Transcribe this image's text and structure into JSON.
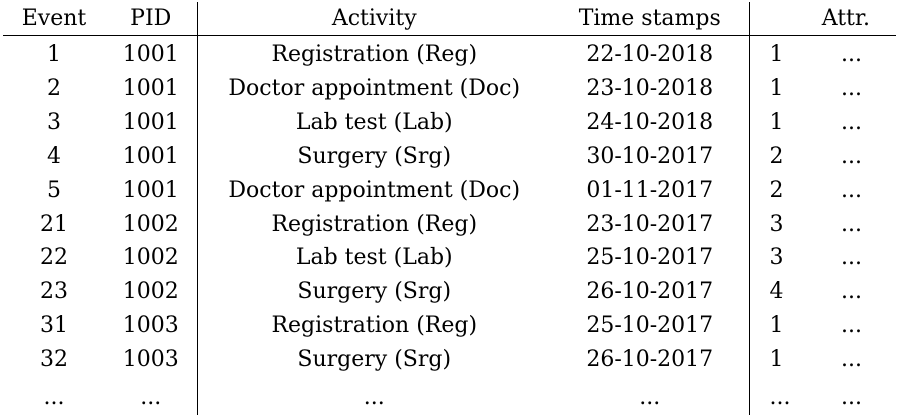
{
  "table": {
    "headers": {
      "event": "Event",
      "pid": "PID",
      "activity": "Activity",
      "timestamps": "Time stamps",
      "attr": "Attr."
    },
    "rows": [
      {
        "event": "1",
        "pid": "1001",
        "activity": "Registration (Reg)",
        "timestamp": "22-10-2018",
        "group": "1",
        "attr": "..."
      },
      {
        "event": "2",
        "pid": "1001",
        "activity": "Doctor appointment (Doc)",
        "timestamp": "23-10-2018",
        "group": "1",
        "attr": "..."
      },
      {
        "event": "3",
        "pid": "1001",
        "activity": "Lab test (Lab)",
        "timestamp": "24-10-2018",
        "group": "1",
        "attr": "..."
      },
      {
        "event": "4",
        "pid": "1001",
        "activity": "Surgery (Srg)",
        "timestamp": "30-10-2017",
        "group": "2",
        "attr": "..."
      },
      {
        "event": "5",
        "pid": "1001",
        "activity": "Doctor appointment (Doc)",
        "timestamp": "01-11-2017",
        "group": "2",
        "attr": "..."
      },
      {
        "event": "21",
        "pid": "1002",
        "activity": "Registration (Reg)",
        "timestamp": "23-10-2017",
        "group": "3",
        "attr": "..."
      },
      {
        "event": "22",
        "pid": "1002",
        "activity": "Lab test (Lab)",
        "timestamp": "25-10-2017",
        "group": "3",
        "attr": "..."
      },
      {
        "event": "23",
        "pid": "1002",
        "activity": "Surgery (Srg)",
        "timestamp": "26-10-2017",
        "group": "4",
        "attr": "..."
      },
      {
        "event": "31",
        "pid": "1003",
        "activity": "Registration (Reg)",
        "timestamp": "25-10-2017",
        "group": "1",
        "attr": "..."
      },
      {
        "event": "32",
        "pid": "1003",
        "activity": "Surgery (Srg)",
        "timestamp": "26-10-2017",
        "group": "1",
        "attr": "..."
      },
      {
        "event": "...",
        "pid": "...",
        "activity": "...",
        "timestamp": "...",
        "group": "...",
        "attr": "..."
      }
    ]
  }
}
